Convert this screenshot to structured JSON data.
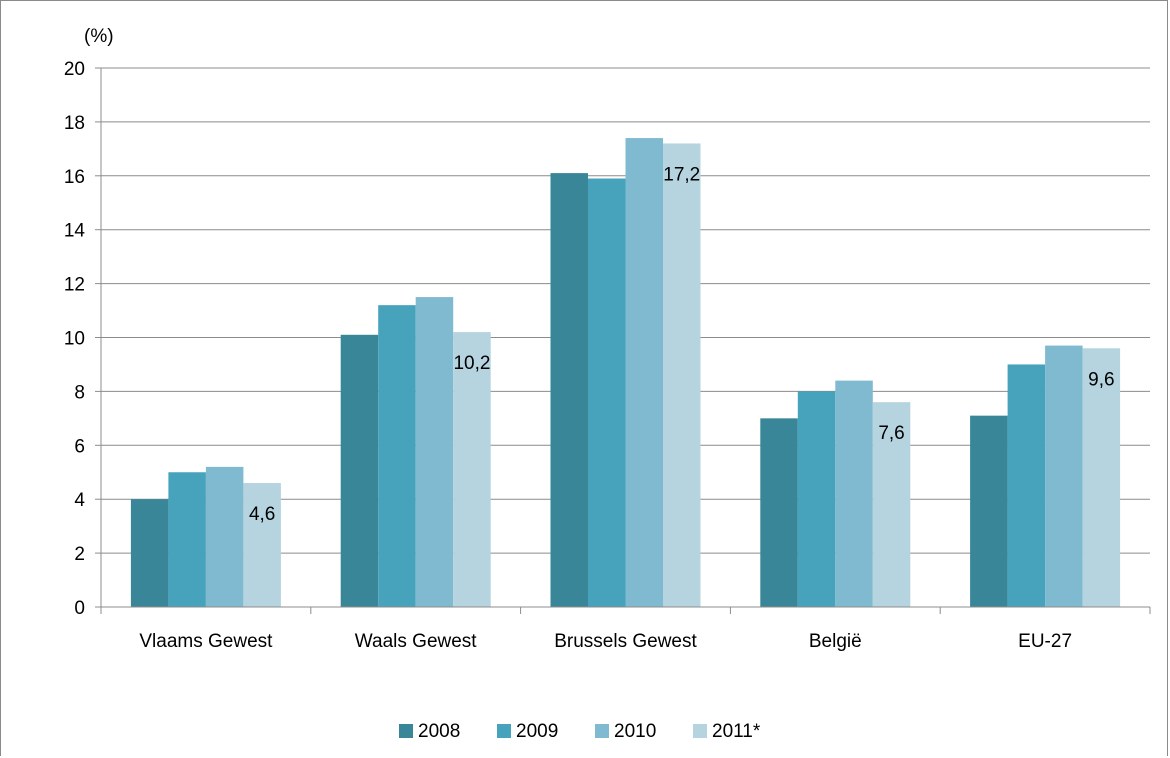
{
  "chart_data": {
    "type": "bar",
    "title": "",
    "ylabel": "(%)",
    "xlabel": "",
    "ylim": [
      0,
      20
    ],
    "yticks": [
      0,
      2,
      4,
      6,
      8,
      10,
      12,
      14,
      16,
      18,
      20
    ],
    "grid": "horizontal",
    "legend_position": "bottom",
    "categories": [
      "Vlaams Gewest",
      "Waals Gewest",
      "Brussels Gewest",
      "België",
      "EU-27"
    ],
    "series": [
      {
        "name": "2008",
        "color": "#3a8699",
        "values": [
          4.0,
          10.1,
          16.1,
          7.0,
          7.1
        ]
      },
      {
        "name": "2009",
        "color": "#47a2bb",
        "values": [
          5.0,
          11.2,
          15.9,
          8.0,
          9.0
        ]
      },
      {
        "name": "2010",
        "color": "#7fbad0",
        "values": [
          5.2,
          11.5,
          17.4,
          8.4,
          9.7
        ]
      },
      {
        "name": "2011*",
        "color": "#b5d4df",
        "values": [
          4.6,
          10.2,
          17.2,
          7.6,
          9.6
        ]
      }
    ],
    "data_labels": [
      {
        "series": "2011*",
        "category": "Vlaams Gewest",
        "text": "4,6"
      },
      {
        "series": "2011*",
        "category": "Waals Gewest",
        "text": "10,2"
      },
      {
        "series": "2011*",
        "category": "Brussels Gewest",
        "text": "17,2"
      },
      {
        "series": "2011*",
        "category": "België",
        "text": "7,6"
      },
      {
        "series": "2011*",
        "category": "EU-27",
        "text": "9,6"
      }
    ]
  }
}
